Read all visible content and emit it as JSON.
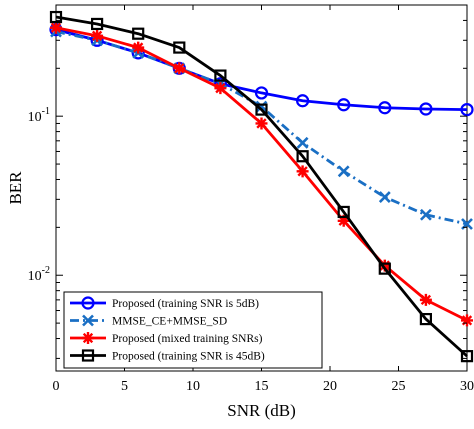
{
  "chart_data": {
    "type": "line",
    "xlabel": "SNR (dB)",
    "ylabel": "BER",
    "xlim": [
      0,
      30
    ],
    "ylim": [
      0.0025,
      0.5
    ],
    "yscale": "log",
    "grid": false,
    "legend_position": "bottom-left",
    "x_ticks": [
      "0",
      "5",
      "10",
      "15",
      "20",
      "25",
      "30"
    ],
    "y_ticks": [
      {
        "value": 0.01,
        "base": "10",
        "exp": "-2"
      },
      {
        "value": 0.1,
        "base": "10",
        "exp": "-1"
      }
    ],
    "x": [
      0,
      3,
      6,
      9,
      12,
      15,
      18,
      21,
      24,
      27,
      30
    ],
    "series": [
      {
        "name": "Proposed (training SNR is 5dB)",
        "color": "#0000ff",
        "marker": "circle",
        "dash": "solid",
        "values": [
          0.35,
          0.3,
          0.25,
          0.2,
          0.16,
          0.14,
          0.125,
          0.118,
          0.113,
          0.111,
          0.11
        ]
      },
      {
        "name": "MMSE_CE+MMSE_SD",
        "color": "#1a6fc4",
        "marker": "x",
        "dash": "dashdot",
        "values": [
          0.34,
          0.3,
          0.25,
          0.2,
          0.16,
          0.115,
          0.068,
          0.045,
          0.031,
          0.024,
          0.021
        ]
      },
      {
        "name": "Proposed (mixed training SNRs)",
        "color": "#ff0000",
        "marker": "star",
        "dash": "solid",
        "values": [
          0.36,
          0.32,
          0.27,
          0.2,
          0.15,
          0.09,
          0.045,
          0.022,
          0.0115,
          0.007,
          0.0052
        ]
      },
      {
        "name": "Proposed (training SNR is 45dB)",
        "color": "#000000",
        "marker": "square",
        "dash": "solid",
        "values": [
          0.42,
          0.38,
          0.33,
          0.27,
          0.18,
          0.11,
          0.056,
          0.025,
          0.011,
          0.0053,
          0.0031
        ]
      }
    ]
  }
}
